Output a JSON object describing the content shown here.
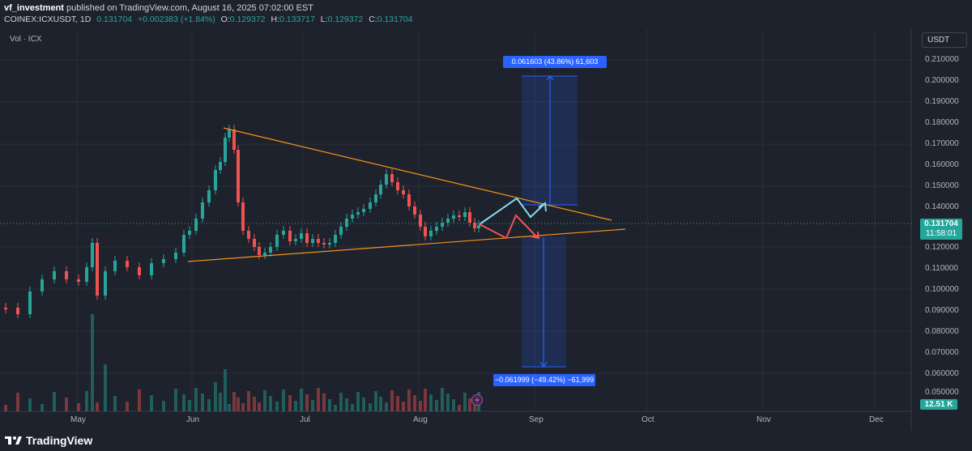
{
  "header": {
    "author": "vf_investment",
    "published_text": "published on TradingView.com, August 16, 2025 07:02:00 EST",
    "symbol_line": "COINEX:ICXUSDT, 1D",
    "last": "0.131704",
    "change": "+0.002383 (+1.84%)",
    "o_label": "O:",
    "o_value": "0.129372",
    "h_label": "H:",
    "h_value": "0.133717",
    "l_label": "L:",
    "l_value": "0.129372",
    "c_label": "C:",
    "c_value": "0.131704"
  },
  "indicator_label": "Vol · ICX",
  "currency_button": "USDT",
  "price_axis": [
    "0.210000",
    "0.200000",
    "0.190000",
    "0.180000",
    "0.170000",
    "0.160000",
    "0.150000",
    "0.140000",
    "0.120000",
    "0.110000",
    "0.100000",
    "0.090000",
    "0.080000",
    "0.070000",
    "0.060000",
    "0.050000"
  ],
  "current_price": {
    "value": "0.131704",
    "countdown": "11:58:01"
  },
  "volume_badge": "12.51 K",
  "time_axis": [
    "May",
    "Jun",
    "Jul",
    "Aug",
    "Sep",
    "Oct",
    "Nov",
    "Dec"
  ],
  "measure_up": "0.061603 (43.86%) 61,603",
  "measure_down": "−0.061999 (−49.42%) −61,999",
  "brand": "TradingView",
  "colors": {
    "up": "#26a69a",
    "down": "#ef5350",
    "trendline": "#f7931a",
    "measure": "#2962ff",
    "background": "#1e222d"
  }
}
